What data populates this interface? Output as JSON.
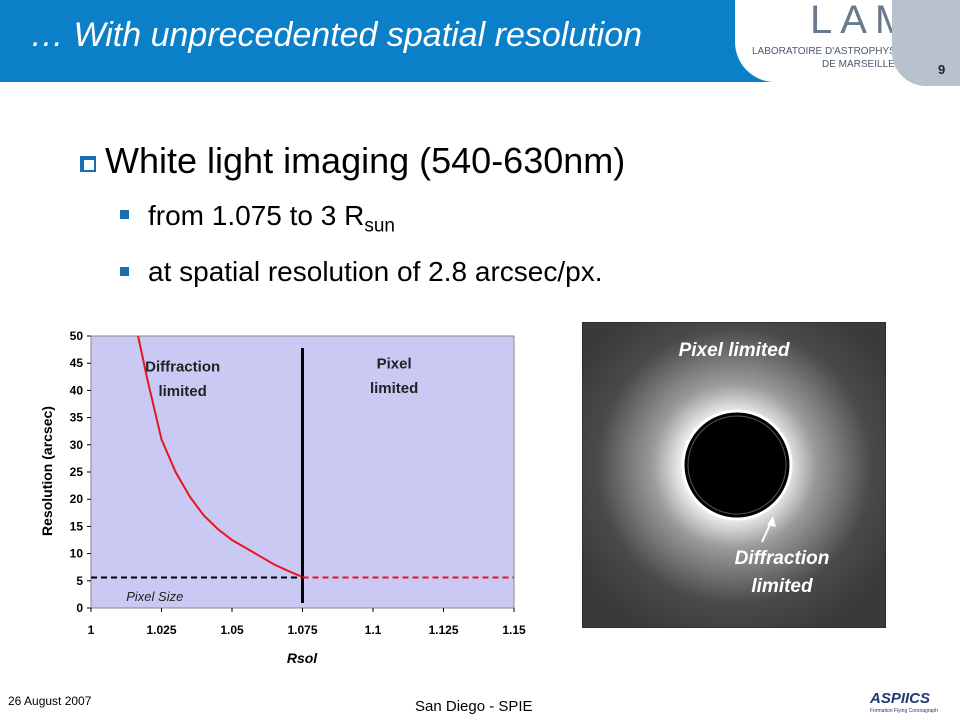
{
  "header": {
    "title": "… With unprecedented spatial resolution",
    "logo": {
      "name": "LAM",
      "line1": "LABORATOIRE D'ASTROPHYSIQUE",
      "line2": "DE MARSEILLE"
    },
    "page": "9"
  },
  "bullets": [
    {
      "text": "White light imaging (540-630nm)"
    },
    {
      "text": "from 1.075 to 3 R",
      "sub": "sun"
    },
    {
      "text": "at spatial resolution of 2.8 arcsec/px."
    }
  ],
  "chart_data": {
    "type": "line",
    "x_label": "Rsol",
    "y_label": "Resolution (arcsec)",
    "xlim": [
      1,
      1.15
    ],
    "xticks": [
      1,
      1.025,
      1.05,
      1.075,
      1.1,
      1.125,
      1.15
    ],
    "ylim": [
      0,
      50
    ],
    "yticks": [
      0,
      5,
      10,
      15,
      20,
      25,
      30,
      35,
      40,
      45,
      50
    ],
    "background": "#c9c9f3",
    "series": [
      {
        "color": "#e8141c",
        "dash": false,
        "x": [
          1.0167,
          1.02,
          1.025,
          1.03,
          1.035,
          1.04,
          1.045,
          1.05,
          1.055,
          1.06,
          1.065,
          1.07,
          1.075
        ],
        "values": [
          50,
          42,
          31,
          25,
          20.5,
          17,
          14.5,
          12.5,
          11,
          9.5,
          8,
          6.8,
          5.7
        ]
      },
      {
        "color": "#e8141c",
        "dash": true,
        "x": [
          1.075,
          1.15
        ],
        "values": [
          5.6,
          5.6
        ]
      },
      {
        "color": "#000000",
        "dash": true,
        "x": [
          1,
          1.075
        ],
        "values": [
          5.6,
          5.6
        ]
      }
    ],
    "vline": {
      "x": 1.075,
      "color": "#000000"
    },
    "annotations": [
      {
        "text": "Diffraction",
        "x": 1.0325,
        "y": 43.5
      },
      {
        "text": "limited",
        "x": 1.0325,
        "y": 39
      },
      {
        "text": "Pixel",
        "x": 1.1075,
        "y": 44
      },
      {
        "text": "limited",
        "x": 1.1075,
        "y": 39.5
      },
      {
        "text": "Pixel Size",
        "x": 1.0125,
        "y": 1.3
      }
    ]
  },
  "image": {
    "label_top": "Pixel limited",
    "label_bottom1": "Diffraction",
    "label_bottom2": "limited"
  },
  "footer": {
    "date": "26 August 2007",
    "venue": "San Diego - SPIE",
    "logo": "ASPIICS",
    "tagline": "Formation Flying Coronagraph"
  }
}
